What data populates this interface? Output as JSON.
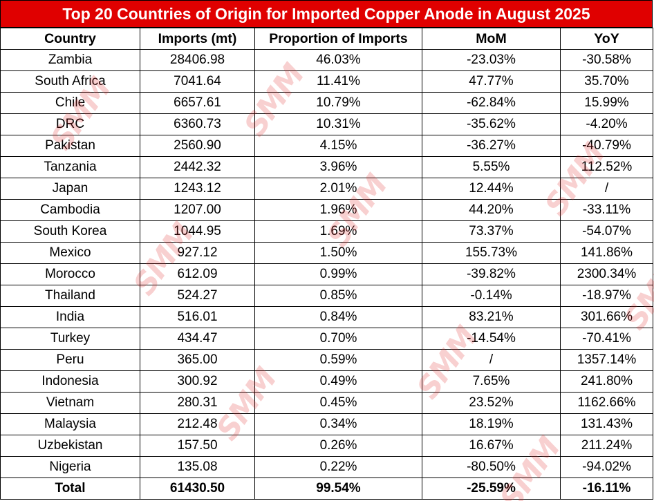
{
  "chart_data": {
    "type": "table",
    "title": "Top 20 Countries of Origin for Imported Copper Anode in August 2025",
    "columns": [
      "Country",
      "Imports (mt)",
      "Proportion of Imports",
      "MoM",
      "YoY"
    ],
    "rows": [
      [
        "Zambia",
        "28406.98",
        "46.03%",
        "-23.03%",
        "-30.58%"
      ],
      [
        "South Africa",
        "7041.64",
        "11.41%",
        "47.77%",
        "35.70%"
      ],
      [
        "Chile",
        "6657.61",
        "10.79%",
        "-62.84%",
        "15.99%"
      ],
      [
        "DRC",
        "6360.73",
        "10.31%",
        "-35.62%",
        "-4.20%"
      ],
      [
        "Pakistan",
        "2560.90",
        "4.15%",
        "-36.27%",
        "-40.79%"
      ],
      [
        "Tanzania",
        "2442.32",
        "3.96%",
        "5.55%",
        "112.52%"
      ],
      [
        "Japan",
        "1243.12",
        "2.01%",
        "12.44%",
        "/"
      ],
      [
        "Cambodia",
        "1207.00",
        "1.96%",
        "44.20%",
        "-33.11%"
      ],
      [
        "South Korea",
        "1044.95",
        "1.69%",
        "73.37%",
        "-54.07%"
      ],
      [
        "Mexico",
        "927.12",
        "1.50%",
        "155.73%",
        "141.86%"
      ],
      [
        "Morocco",
        "612.09",
        "0.99%",
        "-39.82%",
        "2300.34%"
      ],
      [
        "Thailand",
        "524.27",
        "0.85%",
        "-0.14%",
        "-18.97%"
      ],
      [
        "India",
        "516.01",
        "0.84%",
        "83.21%",
        "301.66%"
      ],
      [
        "Turkey",
        "434.47",
        "0.70%",
        "-14.54%",
        "-70.41%"
      ],
      [
        "Peru",
        "365.00",
        "0.59%",
        "/",
        "1357.14%"
      ],
      [
        "Indonesia",
        "300.92",
        "0.49%",
        "7.65%",
        "241.80%"
      ],
      [
        "Vietnam",
        "280.31",
        "0.45%",
        "23.52%",
        "1162.66%"
      ],
      [
        "Malaysia",
        "212.48",
        "0.34%",
        "18.19%",
        "131.43%"
      ],
      [
        "Uzbekistan",
        "157.50",
        "0.26%",
        "16.67%",
        "211.24%"
      ],
      [
        "Nigeria",
        "135.08",
        "0.22%",
        "-80.50%",
        "-94.02%"
      ]
    ],
    "total": [
      "Total",
      "61430.50",
      "99.54%",
      "-25.59%",
      "-16.11%"
    ]
  },
  "watermark": {
    "text": "SMM",
    "color": "#e02828"
  },
  "colors": {
    "title_background": "#e00000",
    "title_text": "#ffffff",
    "border": "#000000"
  }
}
